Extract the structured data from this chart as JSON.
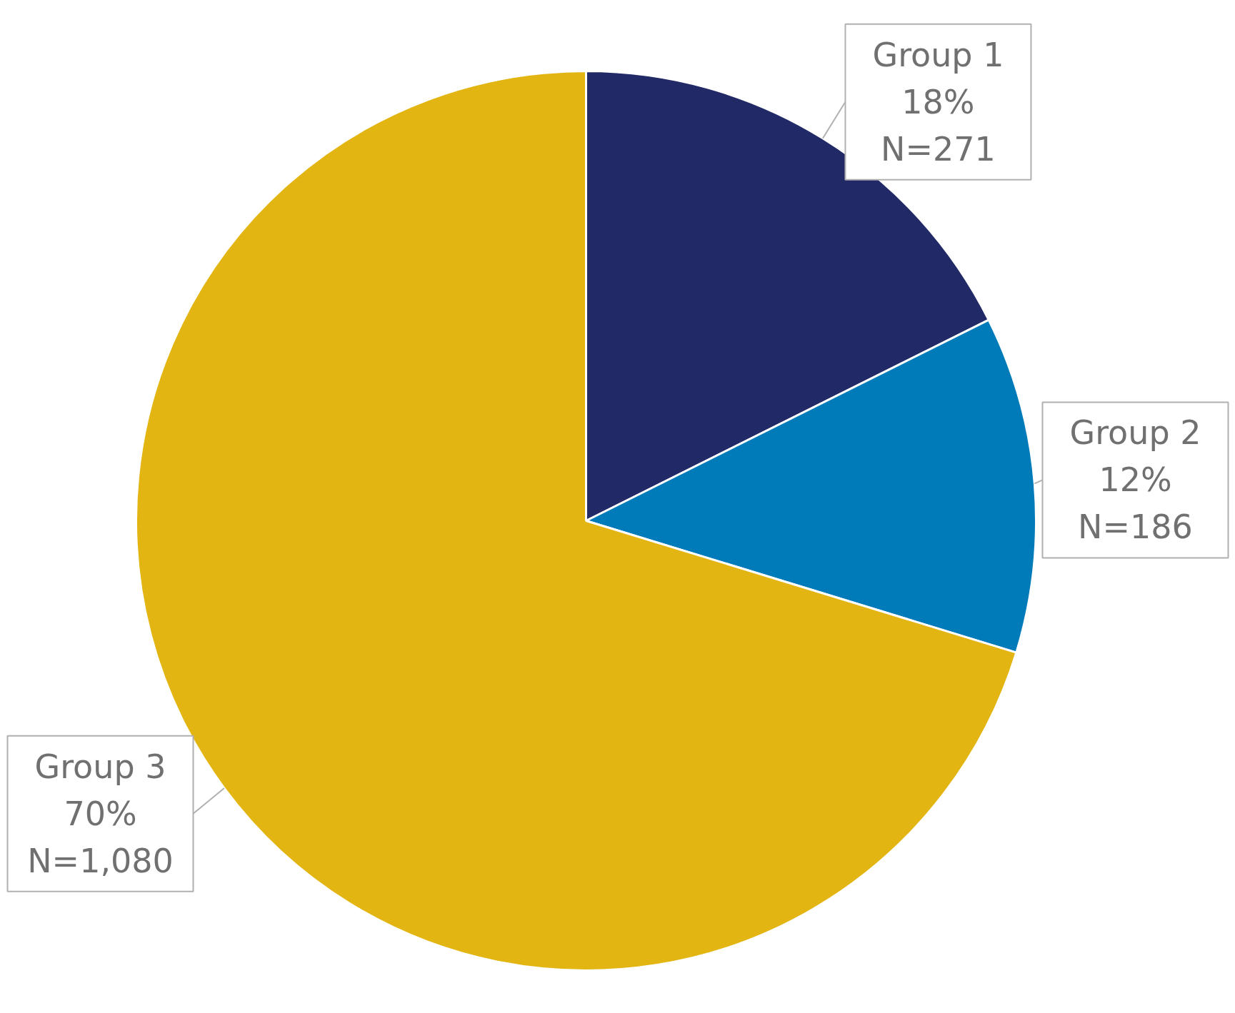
{
  "chart_data": {
    "type": "pie",
    "categories": [
      "Group 1",
      "Group 2",
      "Group 3"
    ],
    "values": [
      271,
      186,
      1080
    ],
    "value_labels": [
      "18%\nN=271",
      "12%\nN=186",
      "70%\nN=1,080"
    ],
    "colors": [
      "#212a66",
      "#007bba",
      "#e3b512"
    ]
  }
}
